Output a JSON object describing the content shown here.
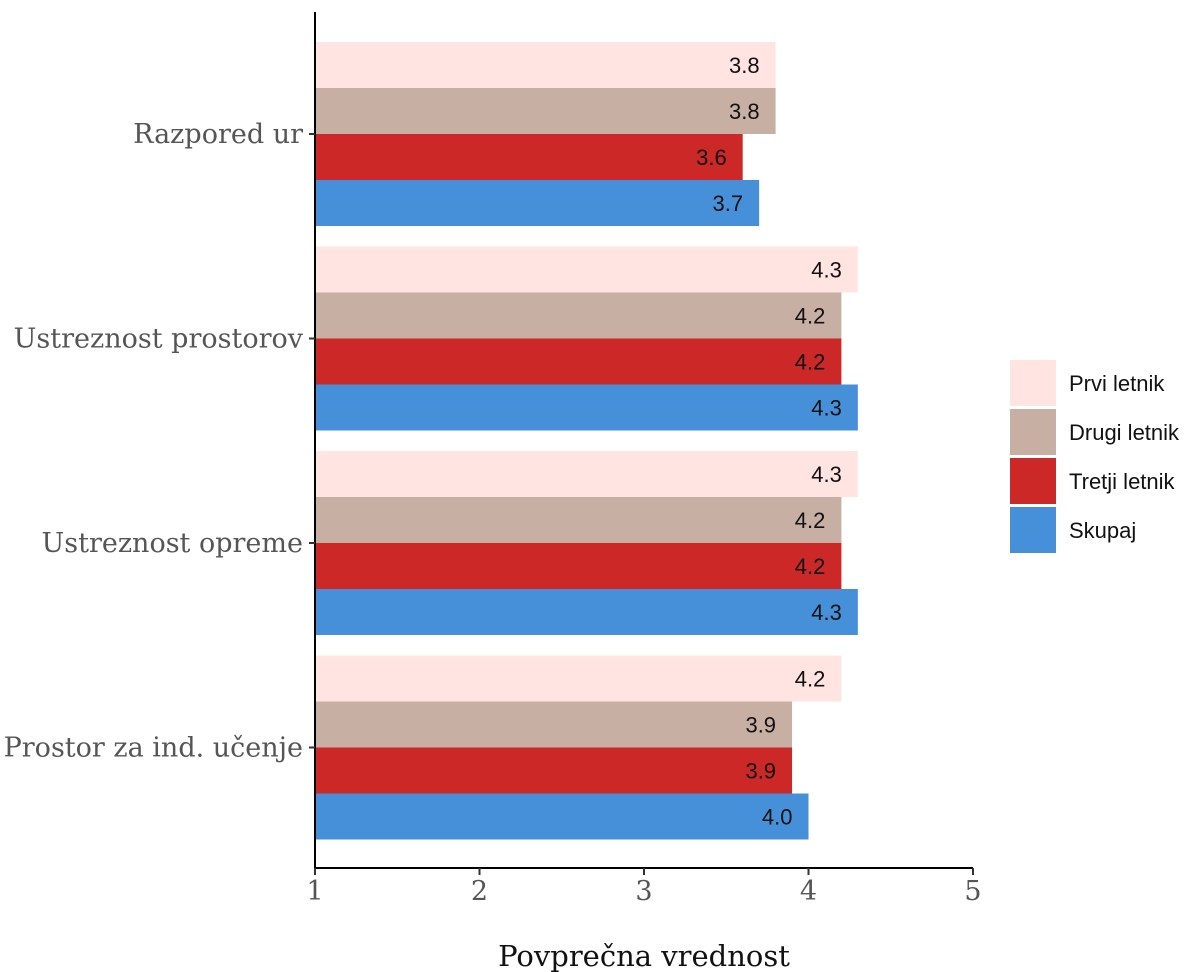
{
  "chart_data": {
    "type": "bar",
    "orientation": "horizontal",
    "categories": [
      "Razpored ur",
      "Ustreznost prostorov",
      "Ustreznost opreme",
      "Prostor za ind. učenje"
    ],
    "series": [
      {
        "name": "Prvi letnik",
        "color": "#ffe4e1",
        "values": [
          3.8,
          4.3,
          4.3,
          4.2
        ],
        "labels": [
          "3.8",
          "4.3",
          "4.3",
          "4.2"
        ]
      },
      {
        "name": "Drugi letnik",
        "color": "#c8afa4",
        "values": [
          3.8,
          4.2,
          4.2,
          3.9
        ],
        "labels": [
          "3.8",
          "4.2",
          "4.2",
          "3.9"
        ]
      },
      {
        "name": "Tretji letnik",
        "color": "#cc2828",
        "values": [
          3.6,
          4.2,
          4.2,
          3.9
        ],
        "labels": [
          "3.6",
          "4.2",
          "4.2",
          "3.9"
        ]
      },
      {
        "name": "Skupaj",
        "color": "#4590d9",
        "values": [
          3.7,
          4.3,
          4.3,
          4.0
        ],
        "labels": [
          "3.7",
          "4.3",
          "4.3",
          "4.0"
        ]
      }
    ],
    "xlabel": "Povprečna vrednost",
    "ylabel": "",
    "xlim": [
      1,
      5
    ],
    "xticks": [
      "1",
      "2",
      "3",
      "4",
      "5"
    ],
    "grid": false,
    "legend_position": "right"
  }
}
